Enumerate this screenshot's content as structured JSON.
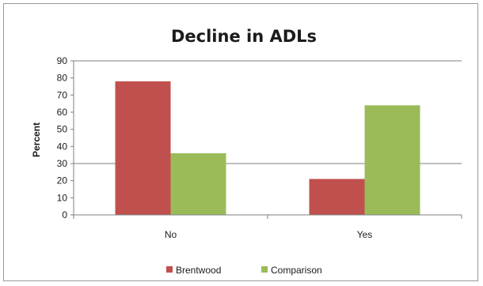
{
  "chart_data": {
    "type": "bar",
    "title": "Decline in ADLs",
    "xlabel": "",
    "ylabel": "Percent",
    "categories": [
      "No",
      "Yes"
    ],
    "series": [
      {
        "name": "Brentwood",
        "values": [
          78,
          21
        ],
        "color": "#c0504d"
      },
      {
        "name": "Comparison",
        "values": [
          36,
          64
        ],
        "color": "#9bbb59"
      }
    ],
    "ylim": [
      0,
      90
    ],
    "yticks": [
      0,
      10,
      20,
      30,
      40,
      50,
      60,
      70,
      80,
      90
    ],
    "gridlines": [
      30,
      90
    ],
    "legend_position": "bottom"
  }
}
